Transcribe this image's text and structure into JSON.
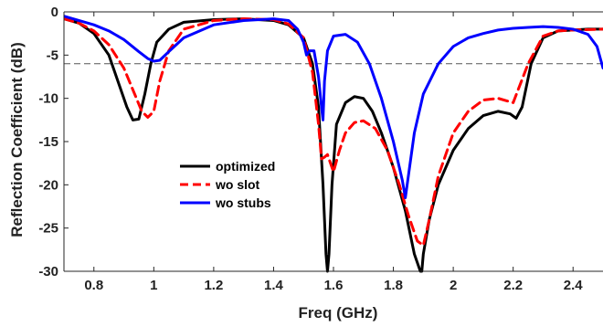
{
  "chart_data": {
    "type": "line",
    "xlabel": "Freq (GHz)",
    "ylabel": "Reflection Coefficient (dB)",
    "xlim": [
      0.7,
      2.5
    ],
    "ylim": [
      -30,
      0
    ],
    "xticks": [
      0.8,
      1,
      1.2,
      1.4,
      1.6,
      1.8,
      2,
      2.2,
      2.4
    ],
    "xtick_labels": [
      "0.8",
      "1",
      "1.2",
      "1.4",
      "1.6",
      "1.8",
      "2",
      "2.2",
      "2.4"
    ],
    "yticks": [
      0,
      -5,
      -10,
      -15,
      -20,
      -25,
      -30
    ],
    "ytick_labels": [
      "0",
      "-5",
      "-10",
      "-15",
      "-20",
      "-25",
      "-30"
    ],
    "reference_line": {
      "y": -6,
      "style": "dashed",
      "color": "#555555"
    },
    "grid": false,
    "legend_position": "center-left",
    "series": [
      {
        "name": "optimized",
        "color": "#000000",
        "dash": "solid",
        "x": [
          0.7,
          0.75,
          0.8,
          0.85,
          0.88,
          0.91,
          0.93,
          0.95,
          0.97,
          0.99,
          1.01,
          1.05,
          1.1,
          1.2,
          1.3,
          1.4,
          1.45,
          1.5,
          1.53,
          1.55,
          1.565,
          1.575,
          1.58,
          1.585,
          1.595,
          1.61,
          1.64,
          1.67,
          1.7,
          1.73,
          1.76,
          1.8,
          1.84,
          1.87,
          1.89,
          1.895,
          1.9,
          1.92,
          1.95,
          2.0,
          2.05,
          2.1,
          2.15,
          2.19,
          2.21,
          2.23,
          2.26,
          2.3,
          2.35,
          2.4,
          2.45,
          2.5
        ],
        "y": [
          -0.8,
          -1.3,
          -2.5,
          -5.0,
          -8.0,
          -11.0,
          -12.5,
          -12.4,
          -9.5,
          -6.0,
          -3.5,
          -2.0,
          -1.2,
          -0.9,
          -0.8,
          -1.0,
          -1.5,
          -3.0,
          -6.0,
          -11.0,
          -20.0,
          -28.0,
          -30.0,
          -28.0,
          -20.0,
          -13.0,
          -10.5,
          -9.8,
          -10.0,
          -11.5,
          -14.0,
          -18.0,
          -23.0,
          -28.0,
          -30.0,
          -30.0,
          -28.0,
          -24.0,
          -20.0,
          -16.0,
          -13.5,
          -12.0,
          -11.5,
          -11.8,
          -12.3,
          -11.0,
          -6.0,
          -3.0,
          -2.2,
          -2.1,
          -2.0,
          -2.0
        ]
      },
      {
        "name": "wo slot",
        "color": "#ff0000",
        "dash": "dashed",
        "x": [
          0.7,
          0.75,
          0.8,
          0.85,
          0.9,
          0.93,
          0.96,
          0.98,
          1.0,
          1.02,
          1.05,
          1.1,
          1.2,
          1.3,
          1.4,
          1.45,
          1.5,
          1.53,
          1.55,
          1.56,
          1.57,
          1.58,
          1.6,
          1.62,
          1.64,
          1.67,
          1.7,
          1.74,
          1.78,
          1.82,
          1.85,
          1.88,
          1.9,
          1.92,
          1.95,
          2.0,
          2.05,
          2.1,
          2.15,
          2.2,
          2.25,
          2.3,
          2.35,
          2.4,
          2.5
        ],
        "y": [
          -0.8,
          -1.3,
          -2.2,
          -3.8,
          -6.5,
          -9.0,
          -11.5,
          -12.2,
          -11.5,
          -8.0,
          -4.5,
          -2.0,
          -1.0,
          -0.8,
          -0.9,
          -1.4,
          -3.0,
          -7.0,
          -13.0,
          -17.0,
          -16.8,
          -16.5,
          -18.5,
          -16.0,
          -14.0,
          -12.8,
          -12.6,
          -13.5,
          -16.0,
          -20.0,
          -23.5,
          -26.5,
          -27.0,
          -24.0,
          -19.0,
          -14.0,
          -11.5,
          -10.2,
          -10.0,
          -10.5,
          -6.0,
          -2.8,
          -2.2,
          -2.1,
          -2.0
        ]
      },
      {
        "name": "wo stubs",
        "color": "#0000ff",
        "dash": "solid",
        "x": [
          0.7,
          0.75,
          0.8,
          0.85,
          0.9,
          0.95,
          0.98,
          1.0,
          1.02,
          1.05,
          1.1,
          1.2,
          1.3,
          1.4,
          1.45,
          1.48,
          1.5,
          1.51,
          1.52,
          1.535,
          1.55,
          1.56,
          1.565,
          1.57,
          1.58,
          1.6,
          1.64,
          1.68,
          1.72,
          1.76,
          1.8,
          1.83,
          1.84,
          1.85,
          1.87,
          1.9,
          1.95,
          2.0,
          2.05,
          2.1,
          2.15,
          2.2,
          2.25,
          2.3,
          2.35,
          2.4,
          2.45,
          2.48,
          2.5
        ],
        "y": [
          -0.5,
          -1.0,
          -1.5,
          -2.2,
          -3.2,
          -4.6,
          -5.4,
          -5.7,
          -5.6,
          -4.6,
          -3.0,
          -1.5,
          -1.0,
          -0.8,
          -1.0,
          -2.0,
          -3.5,
          -5.0,
          -4.5,
          -4.5,
          -7.5,
          -11.0,
          -12.5,
          -8.0,
          -4.5,
          -2.8,
          -2.6,
          -3.5,
          -6.0,
          -10.0,
          -15.0,
          -19.5,
          -21.5,
          -19.0,
          -14.0,
          -9.5,
          -6.0,
          -4.0,
          -3.0,
          -2.5,
          -2.1,
          -1.9,
          -1.8,
          -1.7,
          -1.8,
          -2.0,
          -2.6,
          -4.0,
          -6.5
        ]
      }
    ]
  }
}
